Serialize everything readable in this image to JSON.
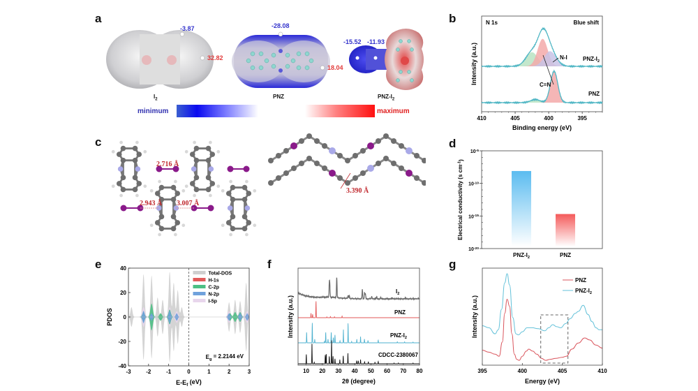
{
  "figure": {
    "panel_letters": [
      "a",
      "b",
      "c",
      "d",
      "e",
      "f",
      "g"
    ]
  },
  "panel_a": {
    "molecules": [
      {
        "name": "I2",
        "name_html_base": "I",
        "name_sub": "2",
        "values": [
          {
            "text": "-3.87",
            "sign": "negative"
          },
          {
            "text": "32.82",
            "sign": "positive"
          }
        ]
      },
      {
        "name": "PNZ",
        "name_html_base": "PNZ",
        "name_sub": "",
        "values": [
          {
            "text": "-28.08",
            "sign": "negative"
          },
          {
            "text": "18.04",
            "sign": "positive"
          }
        ]
      },
      {
        "name": "PNZ-I2",
        "name_html_base": "PNZ-I",
        "name_sub": "2",
        "values": [
          {
            "text": "-15.52",
            "sign": "negative"
          },
          {
            "text": "-11.93",
            "sign": "negative"
          }
        ]
      }
    ],
    "colorbar": {
      "min_label": "minimum",
      "max_label": "maximum",
      "min_color": "#1010e0",
      "max_color": "#ff1010"
    }
  },
  "panel_c": {
    "distances": [
      "2.716 Å",
      "2.943 Å",
      "3.007 Å",
      "3.390 Å"
    ],
    "atom_colors": {
      "carbon": "#6e6e6e",
      "hydrogen": "#d8d8d8",
      "nitrogen": "#a9a9e8",
      "iodine": "#8a1a8a",
      "distance_label": "#c0282d"
    }
  },
  "chart_data": [
    {
      "id": "b",
      "type": "line",
      "title": "N 1s",
      "annotation_top_right": "Blue shift",
      "xlabel": "Binding energy (eV)",
      "ylabel": "Intensity (a.u.)",
      "xlim": [
        410,
        392
      ],
      "x_reversed": true,
      "xticks": [
        410,
        405,
        400,
        395
      ],
      "series": [
        {
          "name": "PNZ-I2",
          "label_base": "PNZ-I",
          "label_sub": "2",
          "color": "#4fb6c4",
          "components": [
            {
              "center": 402.5,
              "height": 0.42,
              "width": 0.9,
              "color": "#b9e3c3"
            },
            {
              "center": 400.9,
              "height": 0.82,
              "width": 0.75,
              "color": "#f3a9a9"
            },
            {
              "center": 399.8,
              "height": 0.45,
              "width": 0.9,
              "color": "#c8c3e6"
            }
          ]
        },
        {
          "name": "PNZ",
          "label_base": "PNZ",
          "label_sub": "",
          "color": "#4fb6c4",
          "components": [
            {
              "center": 402.0,
              "height": 0.1,
              "width": 0.7,
              "color": "#b9e3c3"
            },
            {
              "center": 399.2,
              "height": 1.0,
              "width": 0.55,
              "color": "#f3a9a9"
            }
          ]
        }
      ],
      "annotations": [
        "N-I",
        "C=N"
      ]
    },
    {
      "id": "d",
      "type": "bar",
      "xlabel": "",
      "ylabel": "Electrical conductivity (s cm-1)",
      "ylabel_base": "Electrical conductivity (s cm",
      "ylabel_sup": "-1",
      "ylabel_end": ")",
      "yscale": "log",
      "ylim_exp": [
        -20,
        -5
      ],
      "yticks_exp": [
        -5,
        -10,
        -15,
        -20
      ],
      "categories": [
        "PNZ-I2",
        "PNZ"
      ],
      "category_labels": [
        {
          "base": "PNZ-I",
          "sub": "2"
        },
        {
          "base": "PNZ",
          "sub": ""
        }
      ],
      "values_exp": [
        -8.1,
        -14.7
      ],
      "colors": [
        "#5bbcf0",
        "#f45a5a"
      ]
    },
    {
      "id": "e",
      "type": "area",
      "xlabel": "E-Ef (eV)",
      "xlabel_base": "E-E",
      "xlabel_sub": "f",
      "xlabel_end": " (eV)",
      "ylabel": "PDOS",
      "xlim": [
        -3,
        3
      ],
      "ylim": [
        -40,
        40
      ],
      "xticks": [
        -3,
        -2,
        -1,
        0,
        1,
        2,
        3
      ],
      "yticks": [
        40,
        20,
        0,
        -20,
        -40
      ],
      "annotation": {
        "base": "E",
        "sub": "g",
        "end": " = 2.2144 eV"
      },
      "legend": [
        {
          "name": "Total-DOS",
          "color": "#cfcfcf"
        },
        {
          "name": "H-1s",
          "color": "#e25a5a"
        },
        {
          "name": "C-2p",
          "color": "#4cbf84"
        },
        {
          "name": "N-2p",
          "color": "#6fa1dc"
        },
        {
          "name": "I-5p",
          "color": "#e8d6ec"
        }
      ],
      "total_dos_peaks": [
        {
          "x": -2.85,
          "h": 8
        },
        {
          "x": -2.25,
          "h": 35
        },
        {
          "x": -1.85,
          "h": 34
        },
        {
          "x": -1.55,
          "h": 16
        },
        {
          "x": -1.3,
          "h": 14
        },
        {
          "x": -0.95,
          "h": 37
        },
        {
          "x": -0.75,
          "h": 28
        },
        {
          "x": -0.55,
          "h": 22
        },
        {
          "x": -0.35,
          "h": 8
        },
        {
          "x": 2.0,
          "h": 12
        },
        {
          "x": 2.3,
          "h": 14
        },
        {
          "x": 2.55,
          "h": 13
        },
        {
          "x": 2.85,
          "h": 28
        }
      ],
      "c2p_peaks": [
        {
          "x": -1.85,
          "h": 11
        },
        {
          "x": -2.25,
          "h": 4
        },
        {
          "x": -0.95,
          "h": 6
        },
        {
          "x": -1.4,
          "h": 3
        },
        {
          "x": 2.05,
          "h": 3
        },
        {
          "x": 2.3,
          "h": 4
        },
        {
          "x": 2.55,
          "h": 4
        }
      ],
      "n2p_peaks": [
        {
          "x": -2.25,
          "h": 5
        },
        {
          "x": -0.95,
          "h": 5
        },
        {
          "x": -1.85,
          "h": 3
        },
        {
          "x": -0.6,
          "h": 3
        },
        {
          "x": 2.0,
          "h": 3
        },
        {
          "x": 2.55,
          "h": 3
        },
        {
          "x": 2.9,
          "h": 3
        }
      ],
      "fermi_level_line": 0
    },
    {
      "id": "f",
      "type": "line",
      "xlabel": "2θ (degree)",
      "ylabel": "Intensity (a.u.)",
      "xlim": [
        5,
        80
      ],
      "xticks": [
        10,
        20,
        30,
        40,
        50,
        60,
        70,
        80
      ],
      "series": [
        {
          "name": "I2",
          "label_base": "I",
          "label_sub": "2",
          "color": "#6b6b6b",
          "peaks": [
            [
              24.3,
              0.45
            ],
            [
              24.6,
              0.4
            ],
            [
              28.9,
              0.72
            ],
            [
              35.9,
              0.1
            ],
            [
              36.6,
              0.12
            ],
            [
              44.7,
              0.35
            ],
            [
              46.1,
              0.22
            ],
            [
              46.6,
              0.18
            ],
            [
              50.5,
              0.08
            ],
            [
              53.6,
              0.08
            ],
            [
              56.0,
              0.05
            ],
            [
              63.0,
              0.04
            ],
            [
              71.3,
              0.04
            ]
          ]
        },
        {
          "name": "PNZ",
          "label_base": "PNZ",
          "label_sub": "",
          "color": "#e25555",
          "peaks": [
            [
              13.0,
              0.2
            ],
            [
              14.0,
              0.15
            ],
            [
              16.1,
              0.75
            ],
            [
              22.8,
              0.04
            ],
            [
              25.0,
              0.05
            ],
            [
              27.5,
              0.04
            ],
            [
              32.2,
              0.07
            ]
          ]
        },
        {
          "name": "PNZ-I2",
          "label_base": "PNZ-I",
          "label_sub": "2",
          "color": "#4eb1cf",
          "peaks": [
            [
              10.3,
              0.4
            ],
            [
              13.8,
              0.75
            ],
            [
              15.3,
              0.14
            ],
            [
              21.3,
              0.06
            ],
            [
              22.1,
              0.4
            ],
            [
              23.5,
              0.14
            ],
            [
              25.5,
              0.4
            ],
            [
              26.8,
              0.2
            ],
            [
              27.8,
              0.3
            ],
            [
              30.9,
              0.08
            ],
            [
              33.0,
              0.5
            ],
            [
              35.9,
              0.75
            ],
            [
              38.1,
              0.05
            ],
            [
              41.3,
              0.14
            ],
            [
              43.6,
              0.24
            ],
            [
              46.0,
              0.14
            ],
            [
              48.2,
              0.09
            ],
            [
              54.5,
              0.1
            ],
            [
              66.3,
              0.04
            ],
            [
              70.8,
              0.04
            ],
            [
              76.0,
              0.03
            ]
          ]
        },
        {
          "name": "CDCC-2380067",
          "label_base": "CDCC-2380067",
          "label_sub": "",
          "color": "#111111",
          "peaks": [
            [
              10.1,
              0.38
            ],
            [
              13.6,
              0.85
            ],
            [
              15.0,
              0.06
            ],
            [
              21.8,
              0.35
            ],
            [
              22.4,
              0.4
            ],
            [
              24.3,
              0.3
            ],
            [
              25.7,
              0.95
            ],
            [
              26.6,
              0.3
            ],
            [
              27.8,
              0.2
            ],
            [
              30.8,
              0.17
            ],
            [
              32.9,
              0.32
            ],
            [
              35.8,
              0.42
            ],
            [
              41.2,
              0.12
            ],
            [
              42.2,
              0.12
            ],
            [
              43.6,
              0.17
            ],
            [
              46.1,
              0.08
            ],
            [
              48.4,
              0.08
            ],
            [
              52.5,
              0.07
            ],
            [
              54.5,
              0.09
            ],
            [
              64.3,
              0.03
            ],
            [
              67.0,
              0.03
            ],
            [
              76.0,
              0.03
            ]
          ]
        }
      ]
    },
    {
      "id": "g",
      "type": "line",
      "xlabel": "Energy (eV)",
      "ylabel": "Intensity (a.u.)",
      "xlim": [
        395,
        410
      ],
      "xticks": [
        395,
        400,
        405,
        410
      ],
      "legend": [
        {
          "name": "PNZ",
          "label_base": "PNZ",
          "label_sub": "",
          "color": "#d9535b"
        },
        {
          "name": "PNZ-I2",
          "label_base": "PNZ-I",
          "label_sub": "2",
          "color": "#63c1d9"
        }
      ],
      "highlight_box_x": [
        402.3,
        405.7
      ],
      "series": [
        {
          "name": "PNZ",
          "color": "#d9535b",
          "points": [
            [
              395.0,
              0.12
            ],
            [
              395.8,
              0.1
            ],
            [
              396.6,
              0.08
            ],
            [
              397.1,
              0.06
            ],
            [
              397.5,
              0.2
            ],
            [
              397.8,
              0.48
            ],
            [
              398.1,
              0.62
            ],
            [
              398.4,
              0.55
            ],
            [
              398.7,
              0.28
            ],
            [
              399.0,
              0.08
            ],
            [
              399.3,
              0.03
            ],
            [
              399.6,
              0.02
            ],
            [
              400.0,
              0.06
            ],
            [
              400.5,
              0.11
            ],
            [
              400.8,
              0.13
            ],
            [
              401.3,
              0.11
            ],
            [
              401.8,
              0.08
            ],
            [
              402.4,
              0.04
            ],
            [
              402.9,
              0.02
            ],
            [
              403.5,
              0.03
            ],
            [
              404.2,
              0.04
            ],
            [
              405.0,
              0.05
            ],
            [
              405.5,
              0.06
            ],
            [
              406.2,
              0.13
            ],
            [
              407.0,
              0.19
            ],
            [
              407.8,
              0.24
            ],
            [
              408.4,
              0.22
            ],
            [
              409.2,
              0.17
            ],
            [
              410.0,
              0.14
            ]
          ]
        },
        {
          "name": "PNZ-I2",
          "color": "#63c1d9",
          "points": [
            [
              395.0,
              0.36
            ],
            [
              395.8,
              0.34
            ],
            [
              396.6,
              0.28
            ],
            [
              397.0,
              0.32
            ],
            [
              397.4,
              0.52
            ],
            [
              397.8,
              0.78
            ],
            [
              398.1,
              0.87
            ],
            [
              398.4,
              0.76
            ],
            [
              398.8,
              0.44
            ],
            [
              399.2,
              0.28
            ],
            [
              399.5,
              0.27
            ],
            [
              400.0,
              0.3
            ],
            [
              400.6,
              0.34
            ],
            [
              401.2,
              0.34
            ],
            [
              402.0,
              0.33
            ],
            [
              402.8,
              0.31
            ],
            [
              403.3,
              0.34
            ],
            [
              403.8,
              0.37
            ],
            [
              404.3,
              0.35
            ],
            [
              404.8,
              0.34
            ],
            [
              405.4,
              0.38
            ],
            [
              406.0,
              0.43
            ],
            [
              406.6,
              0.48
            ],
            [
              407.0,
              0.5
            ],
            [
              407.6,
              0.56
            ],
            [
              408.2,
              0.47
            ],
            [
              408.7,
              0.4
            ],
            [
              409.2,
              0.34
            ],
            [
              409.6,
              0.32
            ],
            [
              410.0,
              0.32
            ]
          ]
        }
      ]
    }
  ]
}
